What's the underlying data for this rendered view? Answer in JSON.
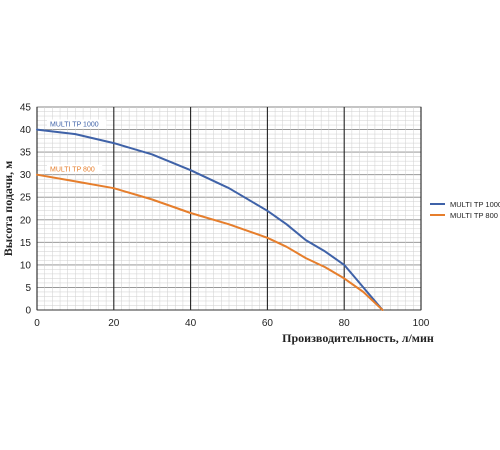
{
  "chart_data": {
    "type": "line",
    "xlabel": "Производительность, л/мин",
    "ylabel": "Высота подачи, м",
    "xlim": [
      0,
      100
    ],
    "ylim": [
      0,
      45
    ],
    "x_ticks": [
      "0",
      "20",
      "40",
      "60",
      "80",
      "100"
    ],
    "y_ticks": [
      "0",
      "5",
      "10",
      "15",
      "20",
      "25",
      "30",
      "35",
      "40",
      "45"
    ],
    "grid": true,
    "legend_position": "right",
    "series": [
      {
        "name": "MULTI TP 1000",
        "color": "#3f62a8",
        "x": [
          0,
          10,
          20,
          30,
          40,
          50,
          60,
          65,
          70,
          75,
          80,
          83,
          86,
          90
        ],
        "y": [
          40,
          39,
          37,
          34.5,
          31,
          27,
          22,
          19,
          15.5,
          13,
          10,
          7,
          4,
          0
        ]
      },
      {
        "name": "MULTI TP 800",
        "color": "#e67e2c",
        "x": [
          0,
          10,
          20,
          30,
          40,
          50,
          60,
          65,
          70,
          75,
          80,
          85,
          90
        ],
        "y": [
          30,
          28.5,
          27,
          24.5,
          21.5,
          19,
          16,
          14,
          11.5,
          9.5,
          7,
          4,
          0
        ]
      }
    ]
  }
}
